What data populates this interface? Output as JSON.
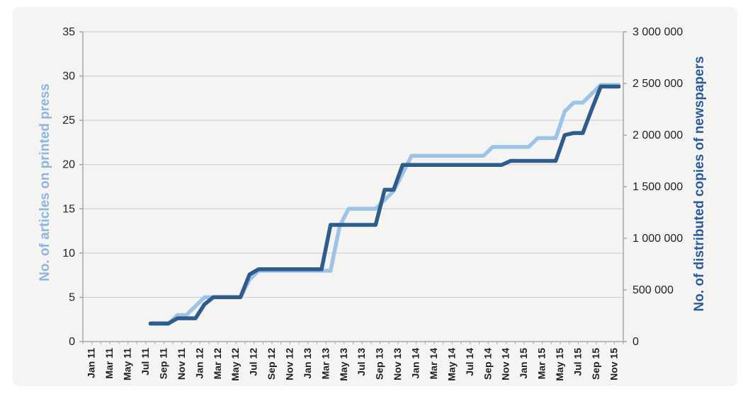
{
  "chart_data": {
    "type": "line",
    "title": "",
    "legend_position": "none",
    "grid": true,
    "plot": {
      "bg": "#f4f4f3",
      "grid_color": "#c9c9c9",
      "axis_color": "#a6a6a6",
      "tick_label_color": "#1f1f1f"
    },
    "left_axis": {
      "label": "No. of articles on printed press",
      "min": 0,
      "max": 35,
      "tick_interval": 5,
      "tick_labels": [
        "0",
        "5",
        "10",
        "15",
        "20",
        "25",
        "30",
        "35"
      ],
      "title_color": "#8eb4e0"
    },
    "right_axis": {
      "label": "No. of distributed copies of newspapers",
      "min": 0,
      "max": 3000000,
      "tick_interval": 500000,
      "tick_labels": [
        "0",
        "500 000",
        "1 000 000",
        "1 500 000",
        "2 000 000",
        "2 500 000",
        "3 000 000"
      ],
      "title_color": "#2a5a9c"
    },
    "x_axis": {
      "label_every": 2,
      "categories": [
        "Jan 11",
        "Feb 11",
        "Mar 11",
        "Apr 11",
        "May 11",
        "Jun 11",
        "Jul 11",
        "Aug 11",
        "Sep 11",
        "Oct 11",
        "Nov 11",
        "Dec 11",
        "Jan 12",
        "Feb 12",
        "Mar 12",
        "Apr 12",
        "May 12",
        "Jun 12",
        "Jul 12",
        "Aug 12",
        "Sep 12",
        "Oct 12",
        "Nov 12",
        "Dec 12",
        "Jan 13",
        "Feb 13",
        "Mar 13",
        "Apr 13",
        "May 13",
        "Jun 13",
        "Jul 13",
        "Aug 13",
        "Sep 13",
        "Oct 13",
        "Nov 13",
        "Dec 13",
        "Jan 14",
        "Feb 14",
        "Mar 14",
        "Apr 14",
        "May 14",
        "Jun 14",
        "Jul 14",
        "Aug 14",
        "Sep 14",
        "Oct 14",
        "Nov 14",
        "Dec 14",
        "Jan 15",
        "Feb 15",
        "Mar 15",
        "Apr 15",
        "May 15",
        "Jun 15",
        "Jul 15",
        "Aug 15",
        "Sep 15",
        "Oct 15",
        "Nov 15",
        "Dec 15"
      ]
    },
    "series": [
      {
        "name": "No. of articles on printed press",
        "axis": "left",
        "color": "#9dc3e6",
        "values": [
          null,
          null,
          null,
          null,
          null,
          null,
          null,
          2,
          2,
          2,
          3,
          3,
          4,
          5,
          5,
          5,
          5,
          5,
          7,
          8,
          8,
          8,
          8,
          8,
          8,
          8,
          8,
          8,
          13,
          15,
          15,
          15,
          15,
          16,
          17,
          19,
          21,
          21,
          21,
          21,
          21,
          21,
          21,
          21,
          21,
          22,
          22,
          22,
          22,
          22,
          23,
          23,
          23,
          26,
          27,
          27,
          28,
          29,
          29,
          29
        ]
      },
      {
        "name": "No. of distributed copies of newspapers",
        "axis": "right",
        "color": "#2e5d8c",
        "values": [
          null,
          null,
          null,
          null,
          null,
          null,
          null,
          175000,
          175000,
          175000,
          225000,
          225000,
          225000,
          360000,
          430000,
          430000,
          430000,
          430000,
          650000,
          700000,
          700000,
          700000,
          700000,
          700000,
          700000,
          700000,
          700000,
          1130000,
          1130000,
          1130000,
          1130000,
          1130000,
          1130000,
          1470000,
          1470000,
          1710000,
          1710000,
          1710000,
          1710000,
          1710000,
          1710000,
          1710000,
          1710000,
          1710000,
          1710000,
          1710000,
          1710000,
          1750000,
          1750000,
          1750000,
          1750000,
          1750000,
          1750000,
          2000000,
          2020000,
          2020000,
          2250000,
          2470000,
          2470000,
          2470000
        ]
      }
    ]
  }
}
